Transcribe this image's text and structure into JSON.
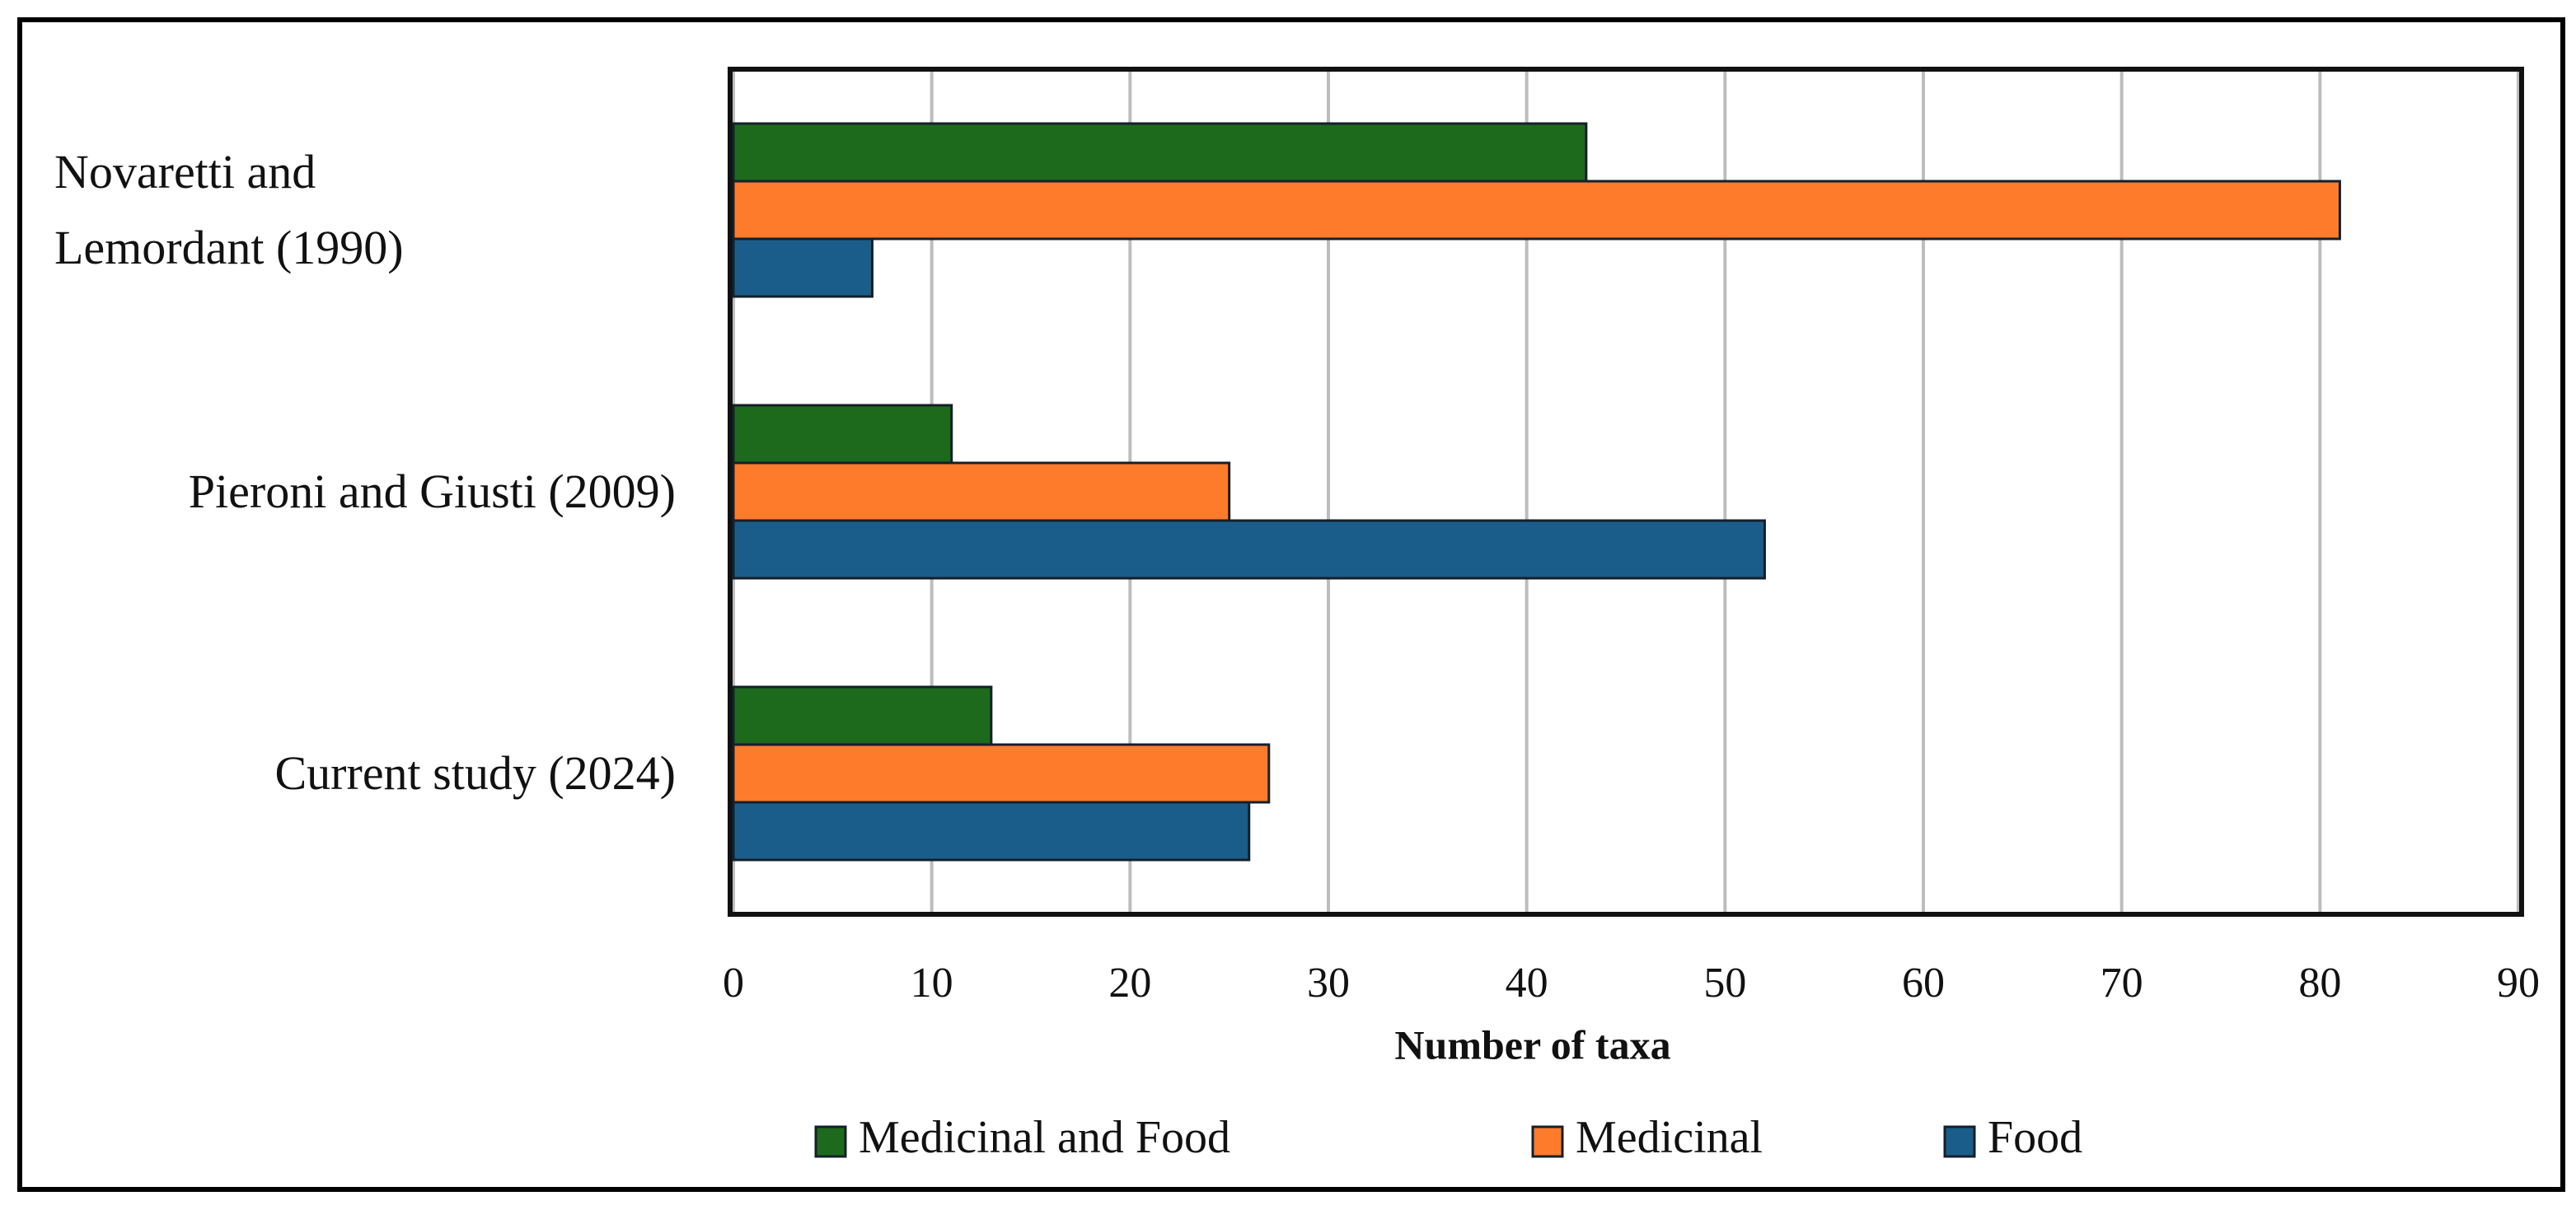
{
  "chart_data": {
    "type": "barh",
    "categories": [
      "Novaretti and Lemordant (1990)",
      "Pieroni and Giusti (2009)",
      "Current study (2024)"
    ],
    "series": [
      {
        "name": "Medicinal and Food",
        "color": "#1d6a1d",
        "values": [
          43,
          11,
          13
        ]
      },
      {
        "name": "Medicinal",
        "color": "#ff7b2c",
        "values": [
          81,
          25,
          27
        ]
      },
      {
        "name": "Food",
        "color": "#1b5d8a",
        "values": [
          7,
          52,
          26
        ]
      }
    ],
    "xlabel": "Number of taxa",
    "xlim": [
      0,
      90
    ],
    "xticks": [
      0,
      10,
      20,
      30,
      40,
      50,
      60,
      70,
      80,
      90
    ],
    "grid": true,
    "legend": "bottom"
  }
}
